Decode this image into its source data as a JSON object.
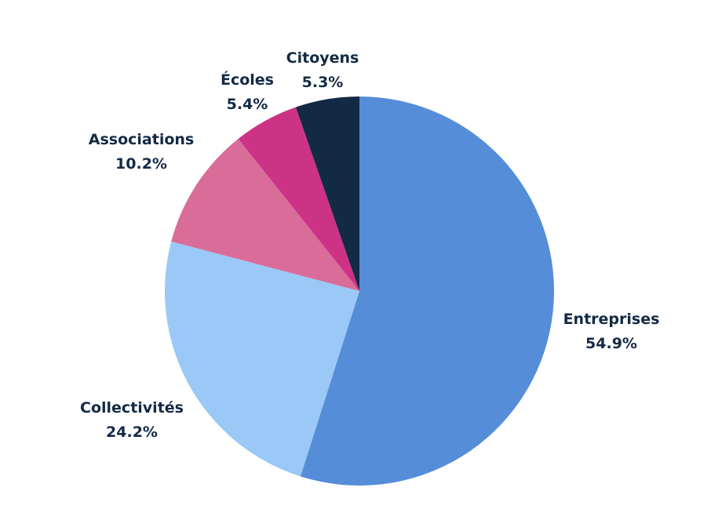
{
  "chart_data": {
    "type": "pie",
    "start_angle_deg": 0,
    "direction": "clockwise",
    "slices": [
      {
        "label": "Entreprises",
        "value": 54.9,
        "value_label": "54.9%",
        "color": "#568dd9"
      },
      {
        "label": "Collectivités",
        "value": 24.2,
        "value_label": "24.2%",
        "color": "#9ac9f8"
      },
      {
        "label": "Associations",
        "value": 10.2,
        "value_label": "10.2%",
        "color": "#d96c98"
      },
      {
        "label": "Écoles",
        "value": 5.4,
        "value_label": "5.4%",
        "color": "#cc3385"
      },
      {
        "label": "Citoyens",
        "value": 5.3,
        "value_label": "5.3%",
        "color": "#132a45"
      }
    ]
  }
}
